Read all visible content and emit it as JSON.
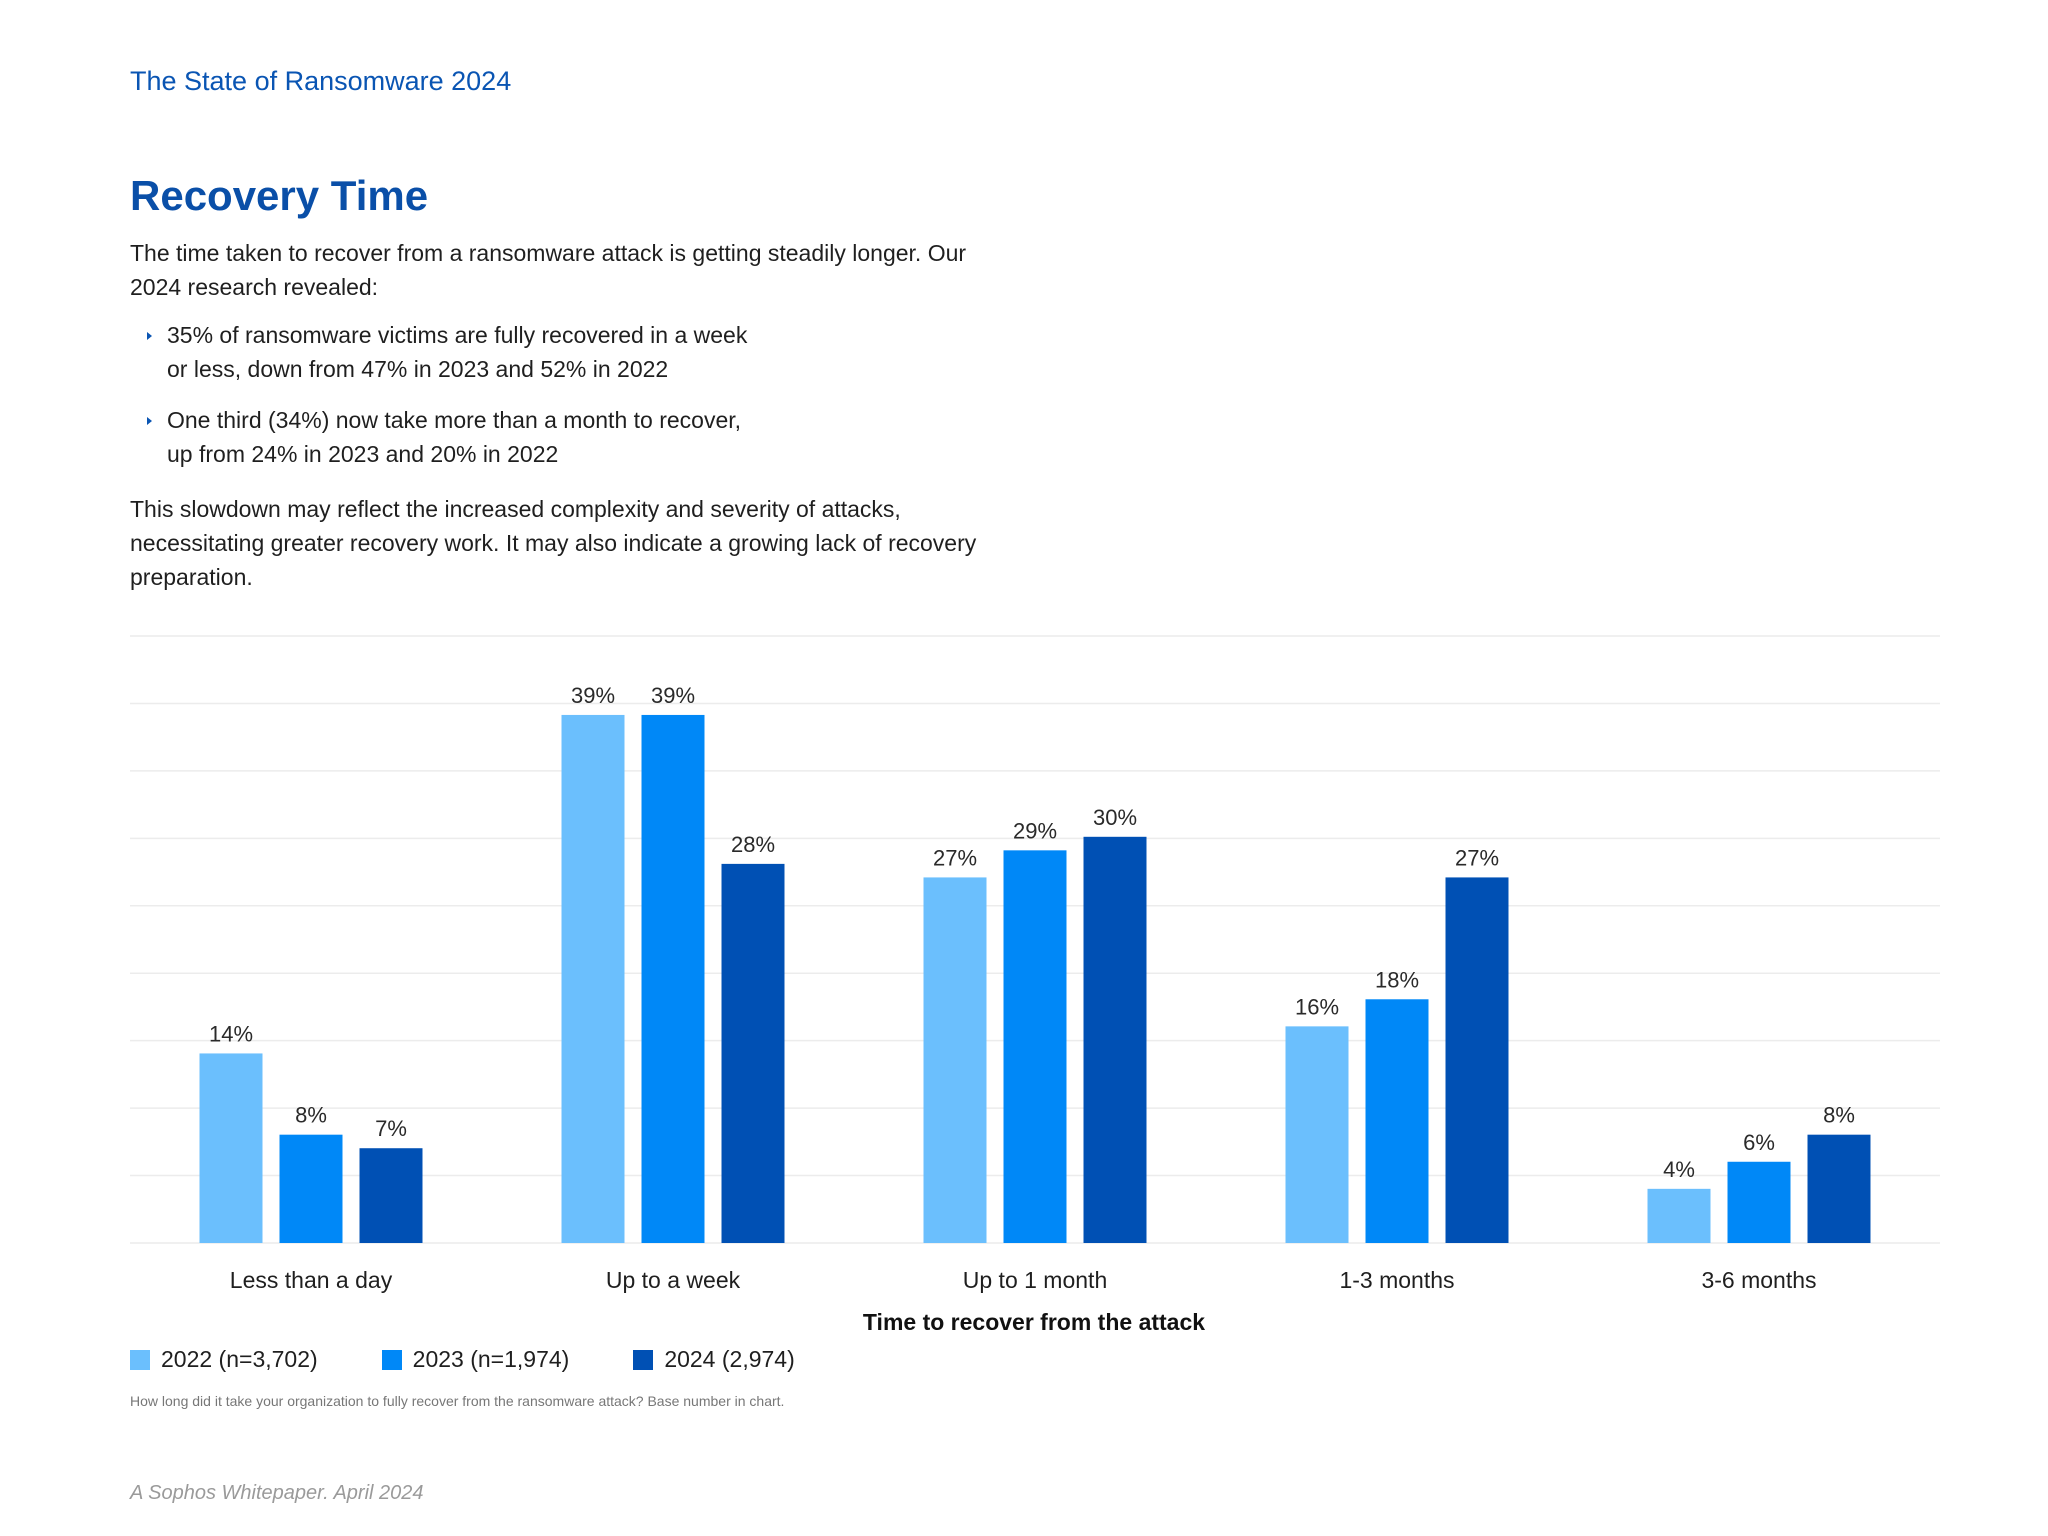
{
  "header": {
    "title": "The State of Ransomware 2024"
  },
  "section": {
    "title": "Recovery Time",
    "intro": "The time taken to recover from a ransomware attack is getting steadily longer. Our 2024 research revealed:",
    "bullets": [
      {
        "line1": "35% of ransomware victims are fully recovered in a week",
        "line2": "or less, down from 47% in 2023 and 52% in 2022"
      },
      {
        "line1": "One third (34%) now take more than a month to recover,",
        "line2": "up from 24% in 2023 and 20% in 2022"
      }
    ],
    "outro": "This slowdown may reflect the increased complexity and severity of attacks, necessitating greater recovery work. It may also indicate a growing lack of recovery preparation."
  },
  "chart_data": {
    "type": "bar",
    "categories": [
      "Less than a day",
      "Up to a week",
      "Up to 1 month",
      "1-3 months",
      "3-6 months"
    ],
    "series": [
      {
        "name": "2022 (n=3,702)",
        "color": "#6bbffd",
        "values": [
          14,
          39,
          27,
          16,
          4
        ]
      },
      {
        "name": "2023 (n=1,974)",
        "color": "#0088f7",
        "values": [
          8,
          39,
          29,
          18,
          6
        ]
      },
      {
        "name": "2024 (2,974)",
        "color": "#0050b4",
        "values": [
          7,
          28,
          30,
          27,
          8
        ]
      }
    ],
    "value_suffix": "%",
    "xlabel": "Time to recover from the attack",
    "ylabel": "",
    "ylim": [
      0,
      45
    ],
    "grid": true,
    "legend_position": "bottom-left"
  },
  "footnote": "How long did it take your organization to fully recover from the ransomware attack? Base number in chart.",
  "footer": "A Sophos Whitepaper. April 2024"
}
